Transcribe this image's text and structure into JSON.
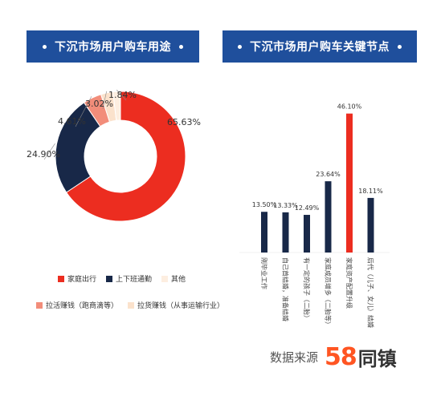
{
  "left_panel": {
    "title": "下沉市场用户购车用途"
  },
  "right_panel": {
    "title": "下沉市场用户购车关键节点"
  },
  "chart_data": [
    {
      "type": "pie",
      "title": "下沉市场用户购车用途",
      "slices": [
        {
          "label": "家庭出行",
          "value": 65.63,
          "display": "65.63%",
          "color": "#ec2d20"
        },
        {
          "label": "上下班通勤",
          "value": 24.9,
          "display": "24.90%",
          "color": "#182848"
        },
        {
          "label": "拉活赚钱（跑商滴等）",
          "value": 4.61,
          "display": "4.61%",
          "color": "#f28d7a"
        },
        {
          "label": "拉货赚钱（从事运输行业）",
          "value": 3.02,
          "display": "3.02%",
          "color": "#fbe2cc"
        },
        {
          "label": "其他",
          "value": 1.84,
          "display": "1.84%",
          "color": "#fdeee0"
        }
      ]
    },
    {
      "type": "bar",
      "title": "下沉市场用户购车关键节点",
      "categories": [
        "刚毕业工作",
        "自己首结婚，准备结婚",
        "有一定的孩子（二胎）",
        "家庭成员增多（二胎等）",
        "家庭资产配置升级",
        "后代（儿子、女儿）结婚"
      ],
      "values": [
        13.5,
        13.33,
        12.49,
        23.64,
        46.1,
        18.11
      ],
      "labels": [
        "13.50%",
        "13.33%",
        "12.49%",
        "23.64%",
        "46.10%",
        "18.11%"
      ],
      "colors": [
        "#182848",
        "#182848",
        "#182848",
        "#182848",
        "#ec2d20",
        "#182848"
      ],
      "ylim": [
        0,
        50
      ]
    }
  ],
  "legend": {
    "row1": [
      {
        "label": "家庭出行",
        "color": "#ec2d20"
      },
      {
        "label": "上下班通勤",
        "color": "#182848"
      },
      {
        "label": "其他",
        "color": "#fdeee0"
      }
    ],
    "row2": [
      {
        "label": "拉活赚钱（跑商滴等）",
        "color": "#f28d7a"
      },
      {
        "label": "拉货赚钱（从事运输行业）",
        "color": "#fbe2cc"
      }
    ]
  },
  "source": {
    "label": "数据来源",
    "logo_number": "58",
    "logo_text": "同镇"
  }
}
